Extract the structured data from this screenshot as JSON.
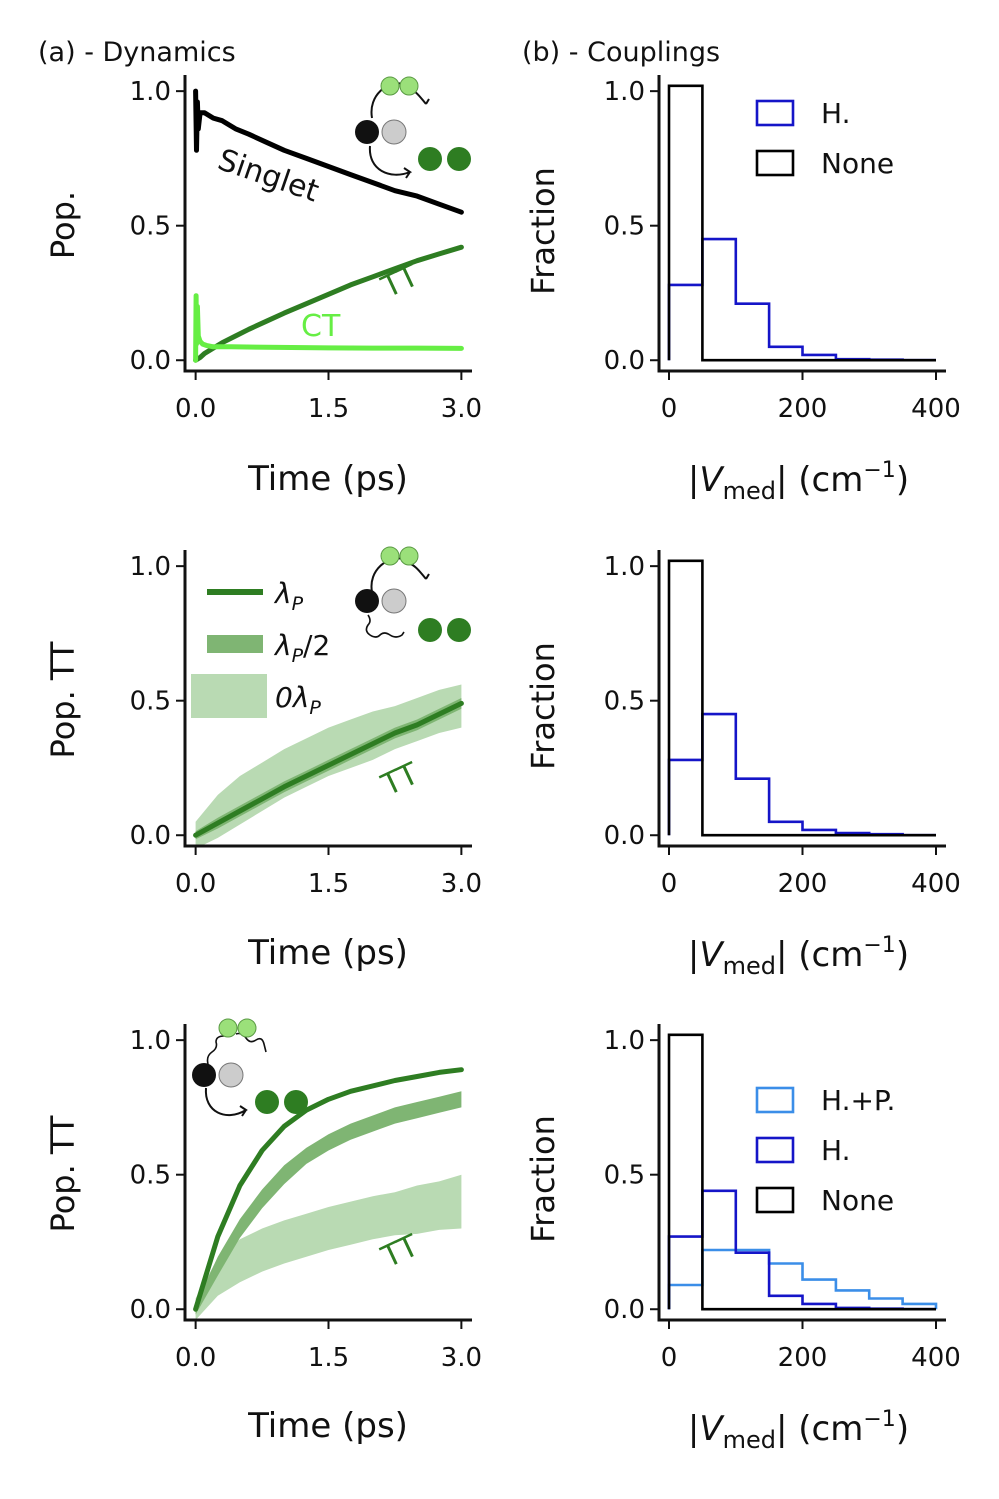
{
  "figure": {
    "panel_a_label": "(a) - Dynamics",
    "panel_b_label": "(b) - Couplings"
  },
  "colors": {
    "singlet": "#000000",
    "tt": "#2e7d22",
    "tt_half": "#7fb573",
    "tt_zero": "#b9dab3",
    "ct": "#66ee44",
    "hist_none": "#000000",
    "hist_h": "#1515c8",
    "hist_hp": "#3b8ee8"
  },
  "chart_data": [
    {
      "id": "dyn1",
      "type": "line",
      "title": "",
      "xlabel": "Time (ps)",
      "ylabel": "Pop.",
      "xlim": [
        -0.12,
        3.12
      ],
      "ylim": [
        -0.04,
        1.06
      ],
      "xticks": [
        "0.0",
        "1.5",
        "3.0"
      ],
      "yticks": [
        "0.0",
        "0.5",
        "1.0"
      ],
      "series": [
        {
          "name": "Singlet",
          "label": "Singlet",
          "color": "#000000",
          "style": "line",
          "x": [
            0,
            0.01,
            0.02,
            0.03,
            0.05,
            0.1,
            0.2,
            0.3,
            0.45,
            0.6,
            0.8,
            1.0,
            1.25,
            1.5,
            1.75,
            2.0,
            2.25,
            2.5,
            2.75,
            3.0
          ],
          "y": [
            1.0,
            0.78,
            0.96,
            0.86,
            0.92,
            0.92,
            0.9,
            0.89,
            0.86,
            0.84,
            0.81,
            0.78,
            0.75,
            0.72,
            0.69,
            0.66,
            0.63,
            0.61,
            0.58,
            0.55
          ]
        },
        {
          "name": "TT",
          "label": "TT",
          "color": "#2e7d22",
          "style": "line",
          "x": [
            0,
            0.05,
            0.1,
            0.2,
            0.3,
            0.45,
            0.6,
            0.8,
            1.0,
            1.25,
            1.5,
            1.75,
            2.0,
            2.25,
            2.5,
            2.75,
            3.0
          ],
          "y": [
            0.0,
            0.01,
            0.025,
            0.045,
            0.065,
            0.09,
            0.115,
            0.145,
            0.175,
            0.21,
            0.245,
            0.28,
            0.31,
            0.34,
            0.37,
            0.395,
            0.42
          ]
        },
        {
          "name": "CT",
          "label": "CT",
          "color": "#66ee44",
          "style": "line",
          "x": [
            0,
            0.005,
            0.01,
            0.02,
            0.03,
            0.05,
            0.08,
            0.12,
            0.2,
            0.4,
            0.8,
            1.5,
            2.0,
            2.5,
            3.0
          ],
          "y": [
            0.0,
            0.24,
            0.06,
            0.2,
            0.09,
            0.07,
            0.06,
            0.055,
            0.05,
            0.05,
            0.048,
            0.046,
            0.045,
            0.045,
            0.044
          ]
        }
      ]
    },
    {
      "id": "hist1",
      "type": "bar",
      "xlabel": "|V_med| (cm⁻¹)",
      "xlabel_parts": {
        "open": "|",
        "v": "V",
        "sub": "med",
        "close": "| (cm",
        "sup": "−1",
        "end": ")"
      },
      "ylabel": "Fraction",
      "xlim": [
        -15,
        415
      ],
      "ylim": [
        -0.04,
        1.06
      ],
      "xticks": [
        "0",
        "200",
        "400"
      ],
      "yticks": [
        "0.0",
        "0.5",
        "1.0"
      ],
      "bin_edges": [
        0,
        50,
        100,
        150,
        200,
        250,
        300,
        350,
        400
      ],
      "series": [
        {
          "name": "H.",
          "color": "#1515c8",
          "values": [
            0.28,
            0.45,
            0.21,
            0.05,
            0.02,
            0.004,
            0.002,
            0.0
          ]
        },
        {
          "name": "None",
          "color": "#000000",
          "values": [
            1.02,
            0.0,
            0.0,
            0.0,
            0.0,
            0.0,
            0.0,
            0.0
          ]
        }
      ],
      "legend": [
        "H.",
        "None"
      ],
      "legend_position": "top-right"
    },
    {
      "id": "dyn2",
      "type": "area",
      "xlabel": "Time (ps)",
      "ylabel": "Pop. TT",
      "xlim": [
        -0.12,
        3.12
      ],
      "ylim": [
        -0.04,
        1.06
      ],
      "xticks": [
        "0.0",
        "1.5",
        "3.0"
      ],
      "yticks": [
        "0.0",
        "0.5",
        "1.0"
      ],
      "annotation": "TT",
      "series": [
        {
          "name": "0λP",
          "color": "#b9dab3",
          "style": "band",
          "x": [
            0,
            0.25,
            0.5,
            0.75,
            1.0,
            1.25,
            1.5,
            1.75,
            2.0,
            2.25,
            2.5,
            2.75,
            3.0
          ],
          "y": [
            0.0,
            0.07,
            0.13,
            0.18,
            0.23,
            0.27,
            0.31,
            0.34,
            0.37,
            0.4,
            0.43,
            0.46,
            0.48
          ],
          "half_width": [
            0.05,
            0.08,
            0.09,
            0.09,
            0.09,
            0.09,
            0.09,
            0.09,
            0.09,
            0.08,
            0.08,
            0.08,
            0.08
          ]
        },
        {
          "name": "λP/2",
          "color": "#7fb573",
          "style": "band",
          "x": [
            0,
            0.25,
            0.5,
            0.75,
            1.0,
            1.25,
            1.5,
            1.75,
            2.0,
            2.25,
            2.5,
            2.75,
            3.0
          ],
          "y": [
            0.0,
            0.045,
            0.09,
            0.135,
            0.18,
            0.22,
            0.26,
            0.3,
            0.34,
            0.38,
            0.41,
            0.45,
            0.49
          ],
          "half_width": [
            0.015,
            0.02,
            0.02,
            0.02,
            0.02,
            0.02,
            0.02,
            0.02,
            0.02,
            0.02,
            0.02,
            0.02,
            0.02
          ]
        },
        {
          "name": "λP",
          "color": "#2e7d22",
          "style": "line",
          "x": [
            0,
            0.25,
            0.5,
            0.75,
            1.0,
            1.25,
            1.5,
            1.75,
            2.0,
            2.25,
            2.5,
            2.75,
            3.0
          ],
          "y": [
            0.0,
            0.045,
            0.09,
            0.135,
            0.18,
            0.22,
            0.26,
            0.3,
            0.34,
            0.38,
            0.41,
            0.45,
            0.49
          ]
        }
      ],
      "legend": [
        {
          "label_main": "λ",
          "label_sub": "P",
          "label_tail": "",
          "kind": "line"
        },
        {
          "label_main": "λ",
          "label_sub": "P",
          "label_tail": "/2",
          "kind": "mid"
        },
        {
          "label_main": "0λ",
          "label_sub": "P",
          "label_tail": "",
          "kind": "band"
        }
      ],
      "legend_position": "top-left"
    },
    {
      "id": "hist2",
      "type": "bar",
      "xlabel": "|V_med| (cm⁻¹)",
      "ylabel": "Fraction",
      "xlim": [
        -15,
        415
      ],
      "ylim": [
        -0.04,
        1.06
      ],
      "xticks": [
        "0",
        "200",
        "400"
      ],
      "yticks": [
        "0.0",
        "0.5",
        "1.0"
      ],
      "bin_edges": [
        0,
        50,
        100,
        150,
        200,
        250,
        300,
        350,
        400
      ],
      "series": [
        {
          "name": "H.",
          "color": "#1515c8",
          "values": [
            0.28,
            0.45,
            0.21,
            0.05,
            0.02,
            0.008,
            0.004,
            0.0
          ]
        },
        {
          "name": "None",
          "color": "#000000",
          "values": [
            1.02,
            0.0,
            0.0,
            0.0,
            0.0,
            0.0,
            0.0,
            0.0
          ]
        }
      ],
      "legend": [],
      "legend_position": "none"
    },
    {
      "id": "dyn3",
      "type": "area",
      "xlabel": "Time (ps)",
      "ylabel": "Pop. TT",
      "xlim": [
        -0.12,
        3.12
      ],
      "ylim": [
        -0.04,
        1.06
      ],
      "xticks": [
        "0.0",
        "1.5",
        "3.0"
      ],
      "yticks": [
        "0.0",
        "0.5",
        "1.0"
      ],
      "annotation": "TT",
      "series": [
        {
          "name": "0λP",
          "color": "#b9dab3",
          "style": "band",
          "x": [
            0,
            0.25,
            0.5,
            0.75,
            1.0,
            1.25,
            1.5,
            1.75,
            2.0,
            2.25,
            2.5,
            2.75,
            3.0
          ],
          "y": [
            0.0,
            0.12,
            0.18,
            0.22,
            0.25,
            0.275,
            0.3,
            0.32,
            0.34,
            0.355,
            0.37,
            0.385,
            0.4
          ],
          "half_width": [
            0.04,
            0.07,
            0.08,
            0.08,
            0.08,
            0.08,
            0.08,
            0.08,
            0.08,
            0.08,
            0.09,
            0.09,
            0.1
          ]
        },
        {
          "name": "λP/2",
          "color": "#7fb573",
          "style": "band",
          "x": [
            0,
            0.25,
            0.5,
            0.75,
            1.0,
            1.25,
            1.5,
            1.75,
            2.0,
            2.25,
            2.5,
            2.75,
            3.0
          ],
          "y": [
            0.0,
            0.16,
            0.3,
            0.41,
            0.5,
            0.57,
            0.62,
            0.66,
            0.69,
            0.72,
            0.74,
            0.76,
            0.78
          ],
          "half_width": [
            0.02,
            0.035,
            0.035,
            0.035,
            0.035,
            0.03,
            0.03,
            0.03,
            0.03,
            0.03,
            0.03,
            0.03,
            0.03
          ]
        },
        {
          "name": "λP",
          "color": "#2e7d22",
          "style": "line",
          "x": [
            0,
            0.25,
            0.5,
            0.75,
            1.0,
            1.25,
            1.5,
            1.75,
            2.0,
            2.25,
            2.5,
            2.75,
            3.0
          ],
          "y": [
            0.0,
            0.27,
            0.46,
            0.59,
            0.68,
            0.74,
            0.78,
            0.81,
            0.83,
            0.85,
            0.865,
            0.88,
            0.89
          ]
        }
      ]
    },
    {
      "id": "hist3",
      "type": "bar",
      "xlabel": "|V_med| (cm⁻¹)",
      "ylabel": "Fraction",
      "xlim": [
        -15,
        415
      ],
      "ylim": [
        -0.04,
        1.06
      ],
      "xticks": [
        "0",
        "200",
        "400"
      ],
      "yticks": [
        "0.0",
        "0.5",
        "1.0"
      ],
      "bin_edges": [
        0,
        50,
        100,
        150,
        200,
        250,
        300,
        350,
        400
      ],
      "series": [
        {
          "name": "H.+P.",
          "color": "#3b8ee8",
          "values": [
            0.09,
            0.22,
            0.22,
            0.17,
            0.11,
            0.07,
            0.04,
            0.02
          ]
        },
        {
          "name": "H.",
          "color": "#1515c8",
          "values": [
            0.27,
            0.44,
            0.21,
            0.05,
            0.02,
            0.005,
            0.002,
            0.0
          ]
        },
        {
          "name": "None",
          "color": "#000000",
          "values": [
            1.02,
            0.0,
            0.0,
            0.0,
            0.0,
            0.0,
            0.0,
            0.0
          ]
        }
      ],
      "legend": [
        "H.+P.",
        "H.",
        "None"
      ],
      "legend_position": "right"
    }
  ]
}
